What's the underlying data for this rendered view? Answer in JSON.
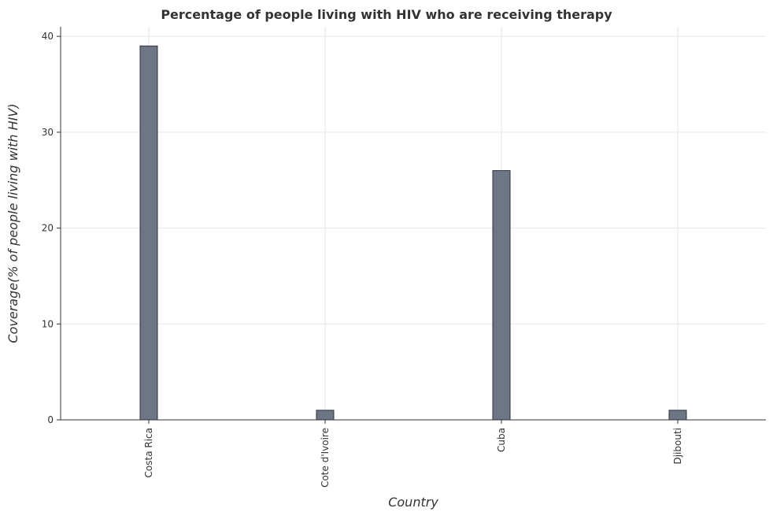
{
  "chart_data": {
    "type": "bar",
    "title": "Percentage of people living with HIV who are receiving therapy",
    "xlabel": "Country",
    "ylabel": "Coverage(% of people living with HIV)",
    "categories": [
      "Costa Rica",
      "Cote d'Ivoire",
      "Cuba",
      "Djibouti"
    ],
    "values": [
      39,
      1,
      26,
      1
    ],
    "ylim": [
      0,
      41
    ],
    "yticks": [
      0,
      10,
      20,
      30,
      40
    ],
    "grid": true,
    "legend": "none",
    "bar_color": "#6d7685",
    "bar_edge_color": "#2e3440"
  }
}
